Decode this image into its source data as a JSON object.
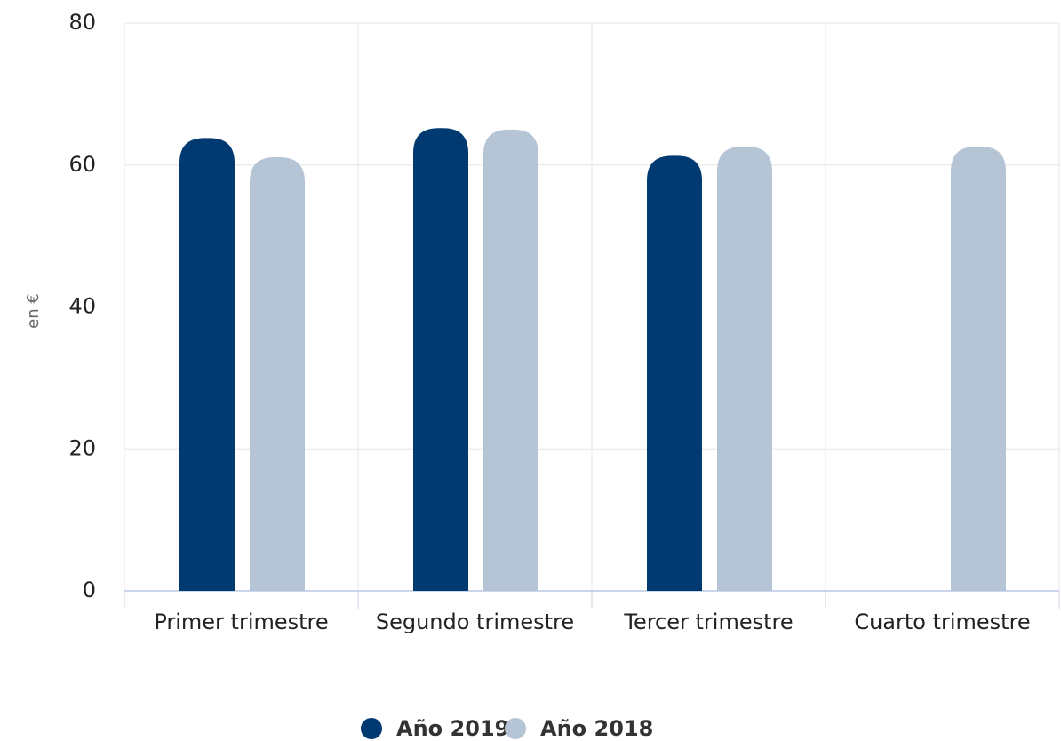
{
  "chart_data": {
    "type": "bar",
    "y_label": "en €",
    "categories": [
      "Primer trimestre",
      "Segundo trimestre",
      "Tercer trimestre",
      "Cuarto trimestre"
    ],
    "series": [
      {
        "name": "Año 2019",
        "color": "#003a70",
        "values": [
          63.8,
          65.2,
          61.3,
          0
        ]
      },
      {
        "name": "Año 2018",
        "color": "#b6c5d6",
        "values": [
          61.1,
          65,
          62.6,
          62.6
        ]
      }
    ],
    "ylim": [
      0,
      80
    ],
    "yticks": [
      0,
      20,
      40,
      60,
      80
    ],
    "grid": true,
    "legend": "bottom"
  }
}
